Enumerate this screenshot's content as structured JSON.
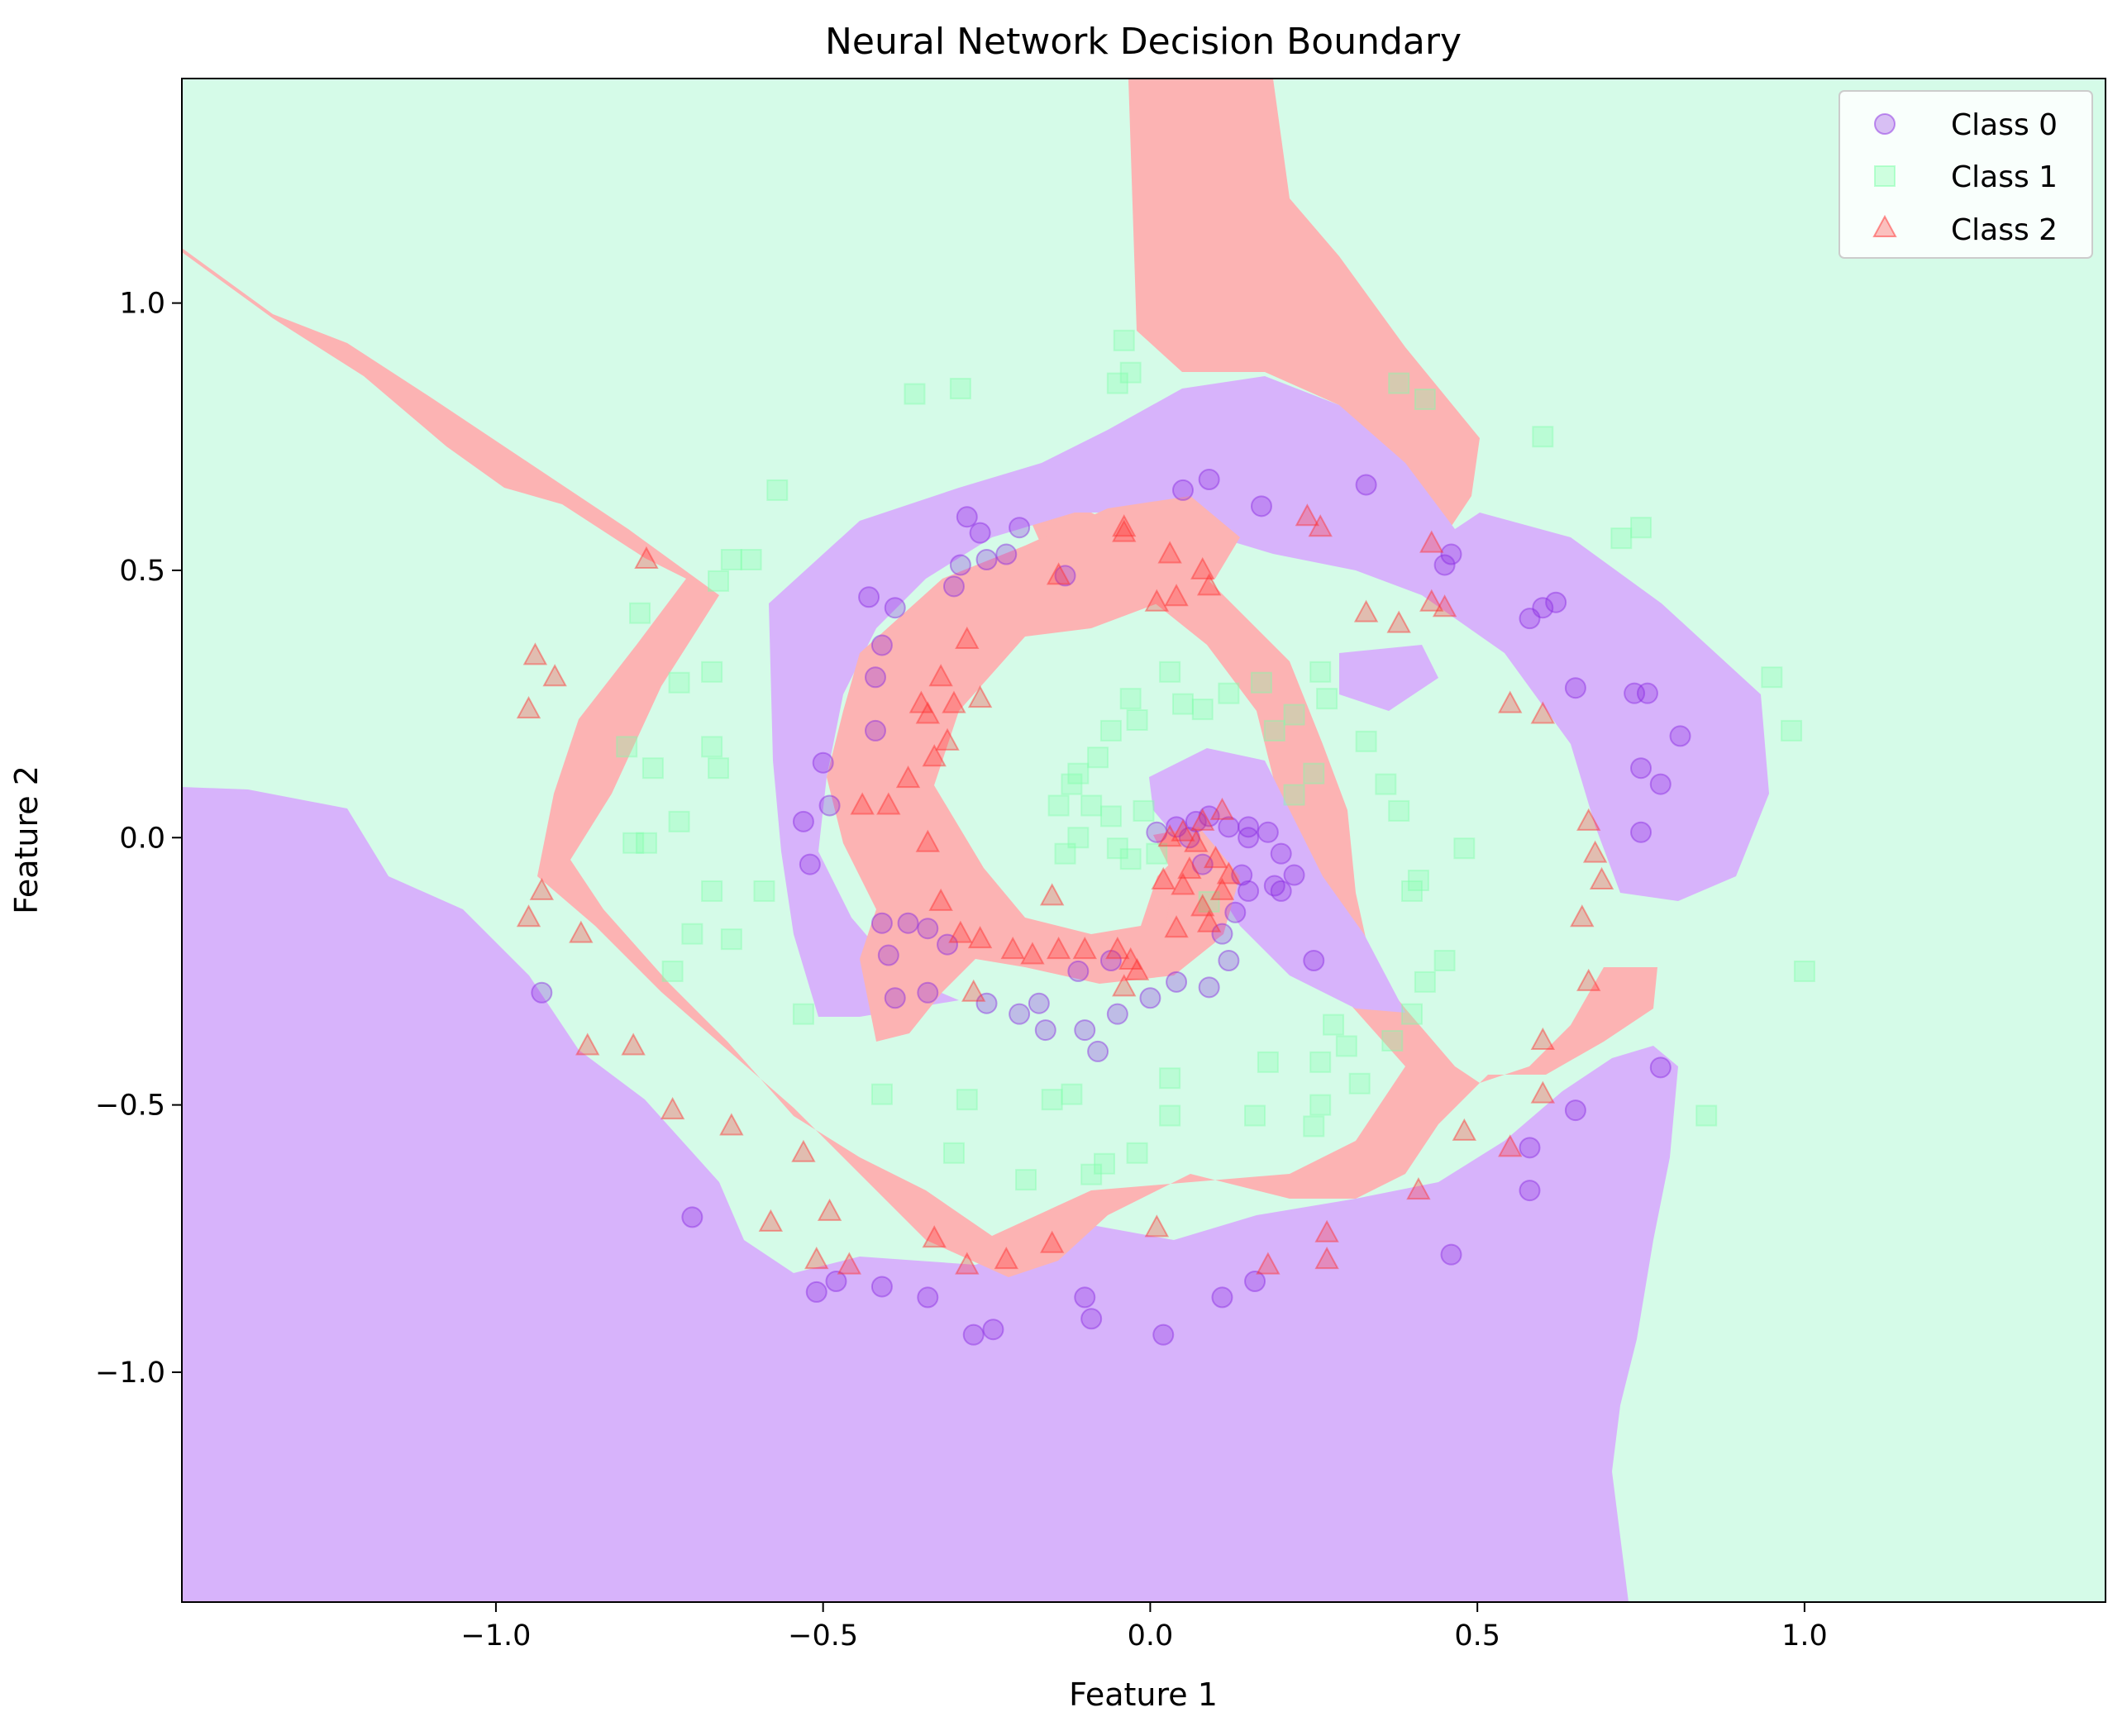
{
  "chart_data": {
    "type": "scatter",
    "title": "Neural Network Decision Boundary",
    "xlabel": "Feature 1",
    "ylabel": "Feature 2",
    "xlim": [
      -1.48,
      1.46
    ],
    "ylim": [
      -1.43,
      1.42
    ],
    "x_ticks": [
      -1.0,
      -0.5,
      0.0,
      0.5,
      1.0
    ],
    "y_ticks": [
      -1.0,
      -0.5,
      0.0,
      0.5,
      1.0
    ],
    "x_tick_labels": [
      "−1.0",
      "−0.5",
      "0.0",
      "0.5",
      "1.0"
    ],
    "y_tick_labels": [
      "−1.0",
      "−0.5",
      "0.0",
      "0.5",
      "1.0"
    ],
    "legend_position": "top-right",
    "grid": false,
    "background_regions": [
      {
        "class": "Class 0",
        "color": "#d7b3fb"
      },
      {
        "class": "Class 1",
        "color": "#d5fbe8"
      },
      {
        "class": "Class 2",
        "color": "#fcb3b3"
      }
    ],
    "series": [
      {
        "name": "Class 0",
        "marker": "circle",
        "color": "#8a2be2",
        "points": [
          [
            0.01,
            0.01
          ],
          [
            0.04,
            0.02
          ],
          [
            0.07,
            0.03
          ],
          [
            0.09,
            0.04
          ],
          [
            0.12,
            0.02
          ],
          [
            0.15,
            0.0
          ],
          [
            0.18,
            0.01
          ],
          [
            0.2,
            -0.03
          ],
          [
            0.22,
            -0.07
          ],
          [
            0.19,
            -0.09
          ],
          [
            0.15,
            -0.1
          ],
          [
            0.13,
            -0.14
          ],
          [
            0.11,
            -0.18
          ],
          [
            0.12,
            -0.23
          ],
          [
            0.09,
            -0.28
          ],
          [
            0.04,
            -0.27
          ],
          [
            0.0,
            -0.3
          ],
          [
            -0.05,
            -0.33
          ],
          [
            -0.1,
            -0.36
          ],
          [
            -0.16,
            -0.36
          ],
          [
            -0.2,
            -0.33
          ],
          [
            -0.25,
            -0.31
          ],
          [
            -0.11,
            -0.25
          ],
          [
            -0.06,
            -0.23
          ],
          [
            -0.31,
            -0.2
          ],
          [
            -0.34,
            -0.17
          ],
          [
            -0.37,
            -0.16
          ],
          [
            -0.41,
            -0.16
          ],
          [
            -0.4,
            -0.22
          ],
          [
            -0.39,
            -0.3
          ],
          [
            -0.34,
            -0.29
          ],
          [
            -0.52,
            -0.05
          ],
          [
            -0.53,
            0.03
          ],
          [
            -0.49,
            0.06
          ],
          [
            -0.5,
            0.14
          ],
          [
            -0.42,
            0.2
          ],
          [
            -0.42,
            0.3
          ],
          [
            -0.41,
            0.36
          ],
          [
            -0.39,
            0.43
          ],
          [
            -0.43,
            0.45
          ],
          [
            -0.3,
            0.47
          ],
          [
            -0.29,
            0.51
          ],
          [
            -0.25,
            0.52
          ],
          [
            -0.26,
            0.57
          ],
          [
            -0.28,
            0.6
          ],
          [
            -0.2,
            0.58
          ],
          [
            -0.22,
            0.53
          ],
          [
            -0.13,
            0.49
          ],
          [
            0.05,
            0.65
          ],
          [
            0.09,
            0.67
          ],
          [
            0.17,
            0.62
          ],
          [
            0.33,
            0.66
          ],
          [
            0.45,
            0.51
          ],
          [
            0.46,
            0.53
          ],
          [
            0.58,
            0.41
          ],
          [
            0.6,
            0.43
          ],
          [
            0.62,
            0.44
          ],
          [
            0.65,
            0.28
          ],
          [
            0.74,
            0.27
          ],
          [
            0.76,
            0.27
          ],
          [
            0.75,
            0.13
          ],
          [
            0.78,
            0.1
          ],
          [
            0.81,
            0.19
          ],
          [
            0.75,
            0.01
          ],
          [
            0.78,
            -0.43
          ],
          [
            0.65,
            -0.51
          ],
          [
            0.58,
            -0.58
          ],
          [
            0.58,
            -0.66
          ],
          [
            0.46,
            -0.78
          ],
          [
            0.11,
            -0.86
          ],
          [
            0.16,
            -0.83
          ],
          [
            0.02,
            -0.93
          ],
          [
            -0.09,
            -0.9
          ],
          [
            -0.1,
            -0.86
          ],
          [
            -0.24,
            -0.92
          ],
          [
            -0.27,
            -0.93
          ],
          [
            -0.34,
            -0.86
          ],
          [
            -0.41,
            -0.84
          ],
          [
            -0.48,
            -0.83
          ],
          [
            -0.51,
            -0.85
          ],
          [
            -0.7,
            -0.71
          ],
          [
            -0.93,
            -0.29
          ],
          [
            0.2,
            -0.1
          ],
          [
            0.15,
            0.02
          ],
          [
            0.08,
            -0.05
          ],
          [
            -0.08,
            -0.4
          ],
          [
            -0.17,
            -0.31
          ],
          [
            0.25,
            -0.23
          ],
          [
            0.14,
            -0.07
          ],
          [
            0.06,
            0.0
          ]
        ]
      },
      {
        "name": "Class 1",
        "marker": "square",
        "color": "#7fffaa",
        "points": [
          [
            -0.04,
            0.93
          ],
          [
            -0.03,
            0.87
          ],
          [
            -0.05,
            0.85
          ],
          [
            -0.36,
            0.83
          ],
          [
            -0.29,
            0.84
          ],
          [
            -0.57,
            0.65
          ],
          [
            -0.78,
            0.42
          ],
          [
            -0.66,
            0.48
          ],
          [
            -0.64,
            0.52
          ],
          [
            -0.61,
            0.52
          ],
          [
            -0.72,
            0.29
          ],
          [
            -0.67,
            0.31
          ],
          [
            -0.8,
            0.17
          ],
          [
            -0.76,
            0.13
          ],
          [
            -0.67,
            0.17
          ],
          [
            -0.66,
            0.13
          ],
          [
            -0.72,
            0.03
          ],
          [
            -0.77,
            -0.01
          ],
          [
            -0.79,
            -0.01
          ],
          [
            -0.67,
            -0.1
          ],
          [
            -0.7,
            -0.18
          ],
          [
            -0.64,
            -0.19
          ],
          [
            -0.59,
            -0.1
          ],
          [
            -0.73,
            -0.25
          ],
          [
            -0.53,
            -0.33
          ],
          [
            -0.41,
            -0.48
          ],
          [
            -0.28,
            -0.49
          ],
          [
            -0.3,
            -0.59
          ],
          [
            -0.19,
            -0.64
          ],
          [
            -0.15,
            -0.49
          ],
          [
            -0.07,
            -0.61
          ],
          [
            -0.02,
            -0.59
          ],
          [
            -0.09,
            -0.63
          ],
          [
            0.03,
            -0.45
          ],
          [
            0.03,
            -0.52
          ],
          [
            0.18,
            -0.42
          ],
          [
            0.16,
            -0.52
          ],
          [
            0.25,
            -0.54
          ],
          [
            0.26,
            -0.5
          ],
          [
            0.26,
            -0.42
          ],
          [
            0.28,
            -0.35
          ],
          [
            0.3,
            -0.39
          ],
          [
            0.37,
            -0.38
          ],
          [
            0.4,
            -0.33
          ],
          [
            0.42,
            -0.27
          ],
          [
            0.45,
            -0.23
          ],
          [
            0.4,
            -0.1
          ],
          [
            0.41,
            -0.08
          ],
          [
            0.38,
            0.05
          ],
          [
            0.36,
            0.1
          ],
          [
            0.33,
            0.18
          ],
          [
            0.27,
            0.26
          ],
          [
            0.26,
            0.31
          ],
          [
            0.22,
            0.23
          ],
          [
            0.17,
            0.29
          ],
          [
            0.12,
            0.27
          ],
          [
            0.08,
            0.24
          ],
          [
            0.05,
            0.25
          ],
          [
            0.03,
            0.31
          ],
          [
            -0.02,
            0.22
          ],
          [
            -0.03,
            0.26
          ],
          [
            -0.06,
            0.2
          ],
          [
            -0.08,
            0.15
          ],
          [
            -0.11,
            0.12
          ],
          [
            -0.12,
            0.1
          ],
          [
            -0.14,
            0.06
          ],
          [
            -0.11,
            0.0
          ],
          [
            -0.06,
            0.04
          ],
          [
            -0.05,
            -0.02
          ],
          [
            -0.01,
            0.05
          ],
          [
            0.01,
            -0.03
          ],
          [
            -0.03,
            -0.04
          ],
          [
            -0.09,
            0.06
          ],
          [
            -0.13,
            -0.03
          ],
          [
            0.22,
            0.08
          ],
          [
            0.25,
            0.12
          ],
          [
            0.19,
            0.2
          ],
          [
            0.95,
            0.3
          ],
          [
            0.98,
            0.2
          ],
          [
            1.0,
            -0.25
          ],
          [
            0.85,
            -0.52
          ],
          [
            0.72,
            0.56
          ],
          [
            0.75,
            0.58
          ],
          [
            0.6,
            0.75
          ],
          [
            0.38,
            0.85
          ],
          [
            0.42,
            0.82
          ],
          [
            0.48,
            -0.02
          ],
          [
            0.32,
            -0.46
          ],
          [
            -0.12,
            -0.48
          ],
          [
            0.09,
            -0.12
          ]
        ]
      },
      {
        "name": "Class 2",
        "marker": "triangle",
        "color": "#ff3030",
        "points": [
          [
            -0.77,
            0.52
          ],
          [
            -0.94,
            0.34
          ],
          [
            -0.91,
            0.3
          ],
          [
            -0.95,
            0.24
          ],
          [
            -0.93,
            -0.1
          ],
          [
            -0.95,
            -0.15
          ],
          [
            -0.87,
            -0.18
          ],
          [
            -0.86,
            -0.39
          ],
          [
            -0.79,
            -0.39
          ],
          [
            -0.73,
            -0.51
          ],
          [
            -0.64,
            -0.54
          ],
          [
            -0.58,
            -0.72
          ],
          [
            -0.53,
            -0.59
          ],
          [
            -0.51,
            -0.79
          ],
          [
            -0.46,
            -0.8
          ],
          [
            -0.49,
            -0.7
          ],
          [
            -0.33,
            -0.75
          ],
          [
            -0.28,
            -0.8
          ],
          [
            -0.22,
            -0.79
          ],
          [
            -0.15,
            -0.76
          ],
          [
            0.01,
            -0.73
          ],
          [
            0.18,
            -0.8
          ],
          [
            0.27,
            -0.74
          ],
          [
            0.27,
            -0.79
          ],
          [
            0.41,
            -0.66
          ],
          [
            0.48,
            -0.55
          ],
          [
            0.55,
            -0.58
          ],
          [
            0.6,
            -0.48
          ],
          [
            0.6,
            -0.38
          ],
          [
            0.67,
            -0.27
          ],
          [
            0.69,
            -0.08
          ],
          [
            0.66,
            -0.15
          ],
          [
            0.68,
            -0.03
          ],
          [
            0.67,
            0.03
          ],
          [
            0.55,
            0.25
          ],
          [
            0.6,
            0.23
          ],
          [
            0.45,
            0.43
          ],
          [
            0.43,
            0.44
          ],
          [
            0.38,
            0.4
          ],
          [
            0.33,
            0.42
          ],
          [
            0.26,
            0.58
          ],
          [
            0.24,
            0.6
          ],
          [
            0.03,
            0.53
          ],
          [
            0.08,
            0.5
          ],
          [
            0.09,
            0.47
          ],
          [
            0.04,
            0.45
          ],
          [
            0.01,
            0.44
          ],
          [
            -0.04,
            0.57
          ],
          [
            -0.04,
            0.58
          ],
          [
            -0.14,
            0.49
          ],
          [
            -0.28,
            0.37
          ],
          [
            -0.32,
            0.3
          ],
          [
            -0.34,
            0.23
          ],
          [
            -0.31,
            0.18
          ],
          [
            -0.33,
            0.15
          ],
          [
            -0.37,
            0.11
          ],
          [
            -0.4,
            0.06
          ],
          [
            -0.44,
            0.06
          ],
          [
            -0.34,
            -0.01
          ],
          [
            -0.15,
            -0.11
          ],
          [
            -0.29,
            -0.18
          ],
          [
            -0.26,
            -0.19
          ],
          [
            -0.21,
            -0.21
          ],
          [
            -0.18,
            -0.22
          ],
          [
            -0.14,
            -0.21
          ],
          [
            -0.1,
            -0.21
          ],
          [
            -0.05,
            -0.21
          ],
          [
            -0.03,
            -0.23
          ],
          [
            -0.02,
            -0.25
          ],
          [
            0.04,
            -0.17
          ],
          [
            0.05,
            -0.09
          ],
          [
            0.06,
            -0.06
          ],
          [
            0.08,
            -0.13
          ],
          [
            0.09,
            -0.16
          ],
          [
            0.11,
            -0.1
          ],
          [
            0.12,
            -0.07
          ],
          [
            0.07,
            -0.01
          ],
          [
            0.03,
            0.0
          ],
          [
            0.05,
            0.01
          ],
          [
            0.1,
            -0.04
          ],
          [
            0.08,
            0.03
          ],
          [
            0.11,
            0.05
          ],
          [
            -0.35,
            0.25
          ],
          [
            -0.3,
            0.25
          ],
          [
            -0.27,
            -0.29
          ],
          [
            -0.04,
            -0.28
          ],
          [
            0.43,
            0.55
          ],
          [
            -0.26,
            0.26
          ],
          [
            -0.32,
            -0.12
          ],
          [
            0.02,
            -0.08
          ]
        ]
      }
    ]
  },
  "legend": {
    "items": [
      {
        "label": "Class 0"
      },
      {
        "label": "Class 1"
      },
      {
        "label": "Class 2"
      }
    ]
  }
}
